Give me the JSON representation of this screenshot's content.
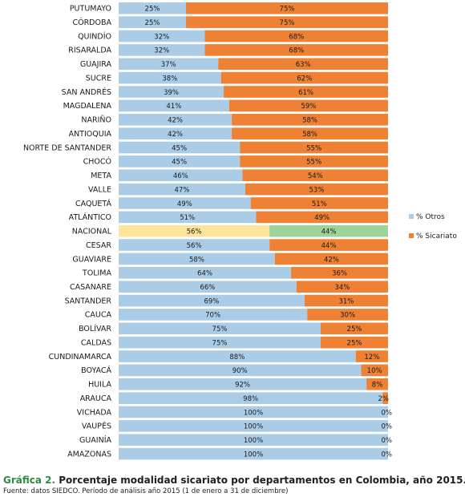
{
  "chart_data": {
    "type": "bar",
    "orientation": "horizontal",
    "stacked": true,
    "normalized": true,
    "categories": [
      "PUTUMAYO",
      "CÓRDOBA",
      "QUINDÍO",
      "RISARALDA",
      "GUAJIRA",
      "SUCRE",
      "SAN ANDRÉS",
      "MAGDALENA",
      "NARIÑO",
      "ANTIOQUIA",
      "NORTE DE SANTANDER",
      "CHOCÓ",
      "META",
      "VALLE",
      "CAQUETÁ",
      "ATLÁNTICO",
      "NACIONAL",
      "CESAR",
      "GUAVIARE",
      "TOLIMA",
      "CASANARE",
      "SANTANDER",
      "CAUCA",
      "BOLÍVAR",
      "CALDAS",
      "CUNDINAMARCA",
      "BOYACÁ",
      "HUILA",
      "ARAUCA",
      "VICHADA",
      "VAUPÉS",
      "GUAINÍA",
      "AMAZONAS"
    ],
    "series": [
      {
        "name": "% Otros",
        "color": "#abcce6",
        "values": [
          25,
          25,
          32,
          32,
          37,
          38,
          39,
          41,
          42,
          42,
          45,
          45,
          46,
          47,
          49,
          51,
          56,
          56,
          58,
          64,
          66,
          69,
          70,
          75,
          75,
          88,
          90,
          92,
          98,
          100,
          100,
          100,
          100
        ]
      },
      {
        "name": "% Sicariato",
        "color": "#ee8133",
        "values": [
          75,
          75,
          68,
          68,
          63,
          62,
          61,
          59,
          58,
          58,
          55,
          55,
          54,
          53,
          51,
          49,
          44,
          44,
          42,
          36,
          34,
          31,
          30,
          25,
          25,
          12,
          10,
          8,
          2,
          0,
          0,
          0,
          0
        ]
      }
    ],
    "highlight": {
      "category": "NACIONAL",
      "colors": [
        "#fde59b",
        "#9ed39a"
      ]
    },
    "value_suffix": "%",
    "xlim": [
      0,
      100
    ],
    "legend_position": "right",
    "grid": false
  },
  "caption": {
    "label": "Gráfica 2.",
    "title": "Porcentaje modalidad sicariato por departamentos en Colombia, año 2015.",
    "source": "Fuente: datos SIEDCO. Período de análisis año 2015 (1 de enero a 31 de diciembre)"
  }
}
